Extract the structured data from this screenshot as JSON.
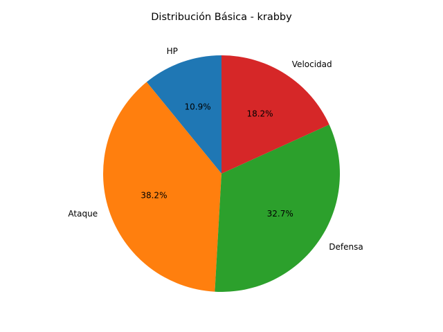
{
  "chart_data": {
    "type": "pie",
    "title": "Distribución Básica - krabby",
    "slices": [
      {
        "label": "HP",
        "value": 10.9,
        "pct_label": "10.9%",
        "color": "#1f77b4"
      },
      {
        "label": "Ataque",
        "value": 38.2,
        "pct_label": "38.2%",
        "color": "#ff7f0e"
      },
      {
        "label": "Defensa",
        "value": 32.7,
        "pct_label": "32.7%",
        "color": "#2ca02c"
      },
      {
        "label": "Velocidad",
        "value": 18.2,
        "pct_label": "18.2%",
        "color": "#d62728"
      }
    ],
    "start_angle_deg": 90,
    "direction": "counterclockwise"
  }
}
